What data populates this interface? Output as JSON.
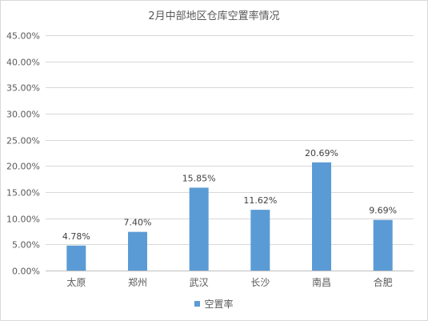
{
  "chart_data": {
    "type": "bar",
    "title": "2月中部地区仓库空置率情况",
    "categories": [
      "太原",
      "郑州",
      "武汉",
      "长沙",
      "南昌",
      "合肥"
    ],
    "series": [
      {
        "name": "空置率",
        "values": [
          4.78,
          7.4,
          15.85,
          11.62,
          20.69,
          9.69
        ],
        "data_labels": [
          "4.78%",
          "7.40%",
          "15.85%",
          "11.62%",
          "20.69%",
          "9.69%"
        ]
      }
    ],
    "ylim": [
      0,
      45
    ],
    "y_ticks": [
      0,
      5,
      10,
      15,
      20,
      25,
      30,
      35,
      40,
      45
    ],
    "y_tick_labels": [
      "0.00%",
      "5.00%",
      "10.00%",
      "15.00%",
      "20.00%",
      "25.00%",
      "30.00%",
      "35.00%",
      "40.00%",
      "45.00%"
    ],
    "grid": true,
    "legend_position": "bottom",
    "bar_color": "#5b9bd5"
  }
}
